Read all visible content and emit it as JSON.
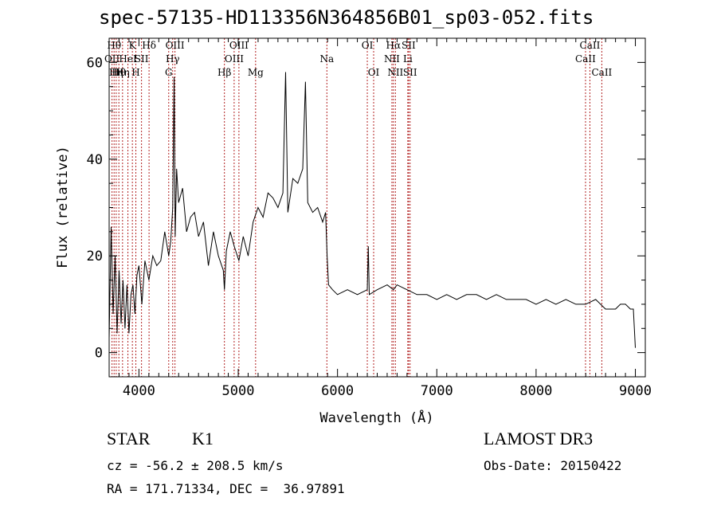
{
  "chart_data": {
    "type": "line",
    "title": "spec-57135-HD113356N364856B01_sp03-052.fits",
    "xlabel": "Wavelength (Å)",
    "ylabel": "Flux (relative)",
    "xlim": [
      3700,
      9100
    ],
    "ylim": [
      -5,
      65
    ],
    "xticks": [
      "4000",
      "5000",
      "6000",
      "7000",
      "8000",
      "9000"
    ],
    "yticks": [
      "0",
      "20",
      "40",
      "60"
    ],
    "series": [
      {
        "name": "spectrum",
        "x": [
          3700,
          3720,
          3740,
          3760,
          3780,
          3800,
          3820,
          3840,
          3860,
          3880,
          3900,
          3920,
          3940,
          3960,
          3980,
          4000,
          4030,
          4060,
          4100,
          4140,
          4180,
          4220,
          4260,
          4300,
          4320,
          4340,
          4355,
          4365,
          4380,
          4400,
          4440,
          4480,
          4520,
          4560,
          4600,
          4650,
          4700,
          4750,
          4800,
          4850,
          4861,
          4880,
          4920,
          4960,
          5007,
          5050,
          5100,
          5150,
          5200,
          5250,
          5300,
          5350,
          5400,
          5450,
          5477,
          5500,
          5550,
          5600,
          5650,
          5677,
          5700,
          5750,
          5800,
          5850,
          5880,
          5895,
          5910,
          5950,
          6000,
          6100,
          6200,
          6300,
          6310,
          6320,
          6400,
          6500,
          6563,
          6600,
          6700,
          6800,
          6900,
          7000,
          7100,
          7200,
          7300,
          7400,
          7500,
          7600,
          7700,
          7800,
          7900,
          8000,
          8100,
          8200,
          8300,
          8400,
          8500,
          8600,
          8700,
          8800,
          8850,
          8900,
          8950,
          8980,
          9000
        ],
        "y": [
          3,
          26,
          8,
          20,
          4,
          17,
          6,
          15,
          5,
          14,
          4,
          12,
          14,
          8,
          16,
          18,
          10,
          19,
          15,
          20,
          18,
          19,
          25,
          20,
          23,
          30,
          57,
          24,
          38,
          31,
          34,
          25,
          28,
          29,
          24,
          27,
          18,
          25,
          20,
          17,
          13,
          21,
          25,
          22,
          19,
          24,
          20,
          27,
          30,
          28,
          33,
          32,
          30,
          33,
          58,
          29,
          36,
          35,
          38,
          56,
          31,
          29,
          30,
          27,
          29,
          20,
          14,
          13,
          12,
          13,
          12,
          13,
          22,
          12,
          13,
          14,
          13,
          14,
          13,
          12,
          12,
          11,
          12,
          11,
          12,
          12,
          11,
          12,
          11,
          11,
          11,
          10,
          11,
          10,
          11,
          10,
          10,
          11,
          9,
          9,
          10,
          10,
          9,
          9,
          1
        ]
      }
    ],
    "line_markers": [
      {
        "x": 3729,
        "label": "OII",
        "row": 1
      },
      {
        "x": 3750,
        "label": "Hθ",
        "row": 0
      },
      {
        "x": 3771,
        "label": "Hη",
        "row": 2
      },
      {
        "x": 3798,
        "label": "Hθ",
        "row": 2
      },
      {
        "x": 3835,
        "label": "Hη",
        "row": 2
      },
      {
        "x": 3889,
        "label": "HeI",
        "row": 1
      },
      {
        "x": 3934,
        "label": "K",
        "row": 0
      },
      {
        "x": 3969,
        "label": "H",
        "row": 2
      },
      {
        "x": 4026,
        "label": "SII",
        "row": 1
      },
      {
        "x": 4102,
        "label": "Hδ",
        "row": 0
      },
      {
        "x": 4300,
        "label": "G",
        "row": 2
      },
      {
        "x": 4340,
        "label": "Hγ",
        "row": 1
      },
      {
        "x": 4363,
        "label": "OIII",
        "row": 0
      },
      {
        "x": 4861,
        "label": "Hβ",
        "row": 2
      },
      {
        "x": 4959,
        "label": "OIII",
        "row": 1
      },
      {
        "x": 5007,
        "label": "OIII",
        "row": 0
      },
      {
        "x": 5175,
        "label": "Mg",
        "row": 2
      },
      {
        "x": 5893,
        "label": "Na",
        "row": 1
      },
      {
        "x": 6300,
        "label": "OI",
        "row": 0
      },
      {
        "x": 6364,
        "label": "OI",
        "row": 2
      },
      {
        "x": 6548,
        "label": "NII",
        "row": 1
      },
      {
        "x": 6563,
        "label": "Hα",
        "row": 0
      },
      {
        "x": 6583,
        "label": "NII",
        "row": 2
      },
      {
        "x": 6708,
        "label": "Li",
        "row": 1
      },
      {
        "x": 6716,
        "label": "SII",
        "row": 0
      },
      {
        "x": 6731,
        "label": "SII",
        "row": 2
      },
      {
        "x": 8498,
        "label": "CaII",
        "row": 1
      },
      {
        "x": 8542,
        "label": "CaII",
        "row": 0
      },
      {
        "x": 8662,
        "label": "CaII",
        "row": 2
      }
    ]
  },
  "footer": {
    "class_type": "STAR",
    "subclass": "K1",
    "survey": "LAMOST DR3",
    "cz": "cz = -56.2 ± 208.5 km/s",
    "obs_date": "Obs-Date: 20150422",
    "coords": "RA = 171.71334, DEC =  36.97891"
  },
  "colors": {
    "marker": "#b22222",
    "spectrum": "#000000"
  }
}
